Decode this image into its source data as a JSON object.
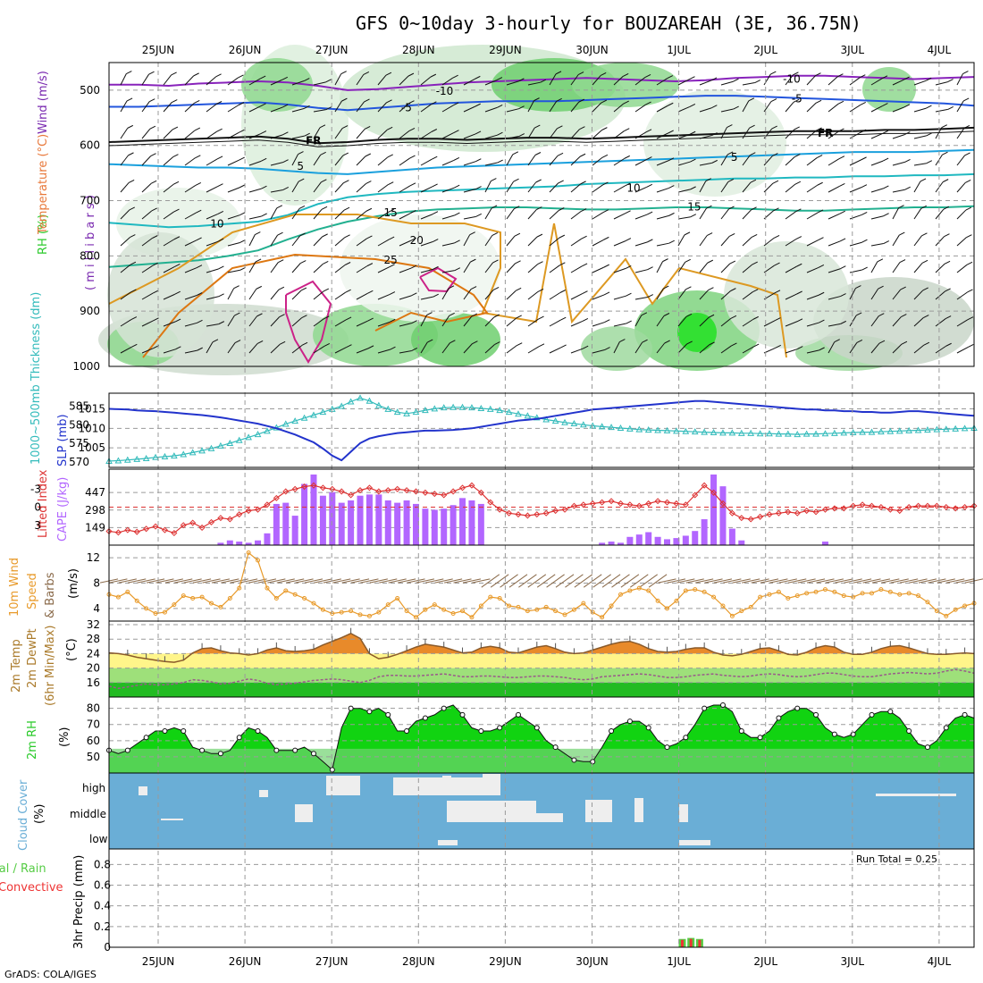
{
  "title": "GFS 0~10day 3-hourly for BOUZAREAH (3E, 36.75N)",
  "footer": "GrADS: COLA/IGES",
  "run_total": "Run Total = 0.25",
  "days": [
    "25JUN",
    "26JUN",
    "27JUN",
    "28JUN",
    "29JUN",
    "30JUN",
    "1JUL",
    "2JUL",
    "3JUL",
    "4JUL"
  ],
  "colors": {
    "rh_band": "#2aca2a",
    "temp_label": "#e8783a",
    "wind_label": "#7a2ab0",
    "slp": "#2233cc",
    "thickness": "#33bbbb",
    "li": "#dd3333",
    "cape": "#b266ff",
    "wind10": "#e89a2a",
    "barb10": "#8a6a4a",
    "cloud": "#6aaed6",
    "precip_total": "#55cc44",
    "precip_conv": "#ee3333",
    "rh_fill": "#11d311",
    "temp_fill": "#e88a2a",
    "dew": "#9a5a8a"
  },
  "labels": {
    "upper_rh": "RH (%)",
    "upper_temp": "Temperature (°C)",
    "upper_wind": "Wind (m/s)",
    "upper_press": "( m i l l i b a r s )",
    "thickness": "1000~500mb Thickness (dm)",
    "slp": "SLP (mb)",
    "li": "Lifted Index",
    "cape": "CAPE (J/kg)",
    "wind10_a": "10m Wind",
    "wind10_b": "Speed",
    "wind10_c": "& Barbs",
    "wind10_unit": "(m/s)",
    "temp_a": "2m Temp",
    "temp_b": "2m DewPt",
    "temp_c": "(6hr Min/Max)",
    "temp_unit": "(°C)",
    "rh2m": "2m RH",
    "rh2m_unit": "(%)",
    "cloud": "Cloud Cover",
    "cloud_unit": "(%)",
    "precip_a": "Total / Rain",
    "precip_b": "Convective",
    "precip_unit": "3hr Precip (mm)"
  },
  "chart_data": [
    {
      "type": "line",
      "name": "upper-air cross section",
      "ylabel": "millibars",
      "yticks": [
        500,
        600,
        700,
        800,
        900,
        1000
      ],
      "ylim": [
        450,
        1000
      ],
      "isotherms": [
        {
          "label": "-10",
          "color": "#8822bb",
          "values": [
            490,
            490,
            492,
            488,
            486,
            484,
            486,
            492,
            500,
            498,
            494,
            490,
            486,
            484,
            482,
            480,
            478,
            480,
            482,
            484,
            482,
            478,
            476,
            474,
            474,
            476,
            478,
            480,
            478,
            476
          ]
        },
        {
          "label": "-5",
          "color": "#2255dd",
          "values": [
            530,
            530,
            528,
            526,
            524,
            522,
            526,
            532,
            536,
            532,
            528,
            524,
            522,
            520,
            520,
            520,
            518,
            516,
            514,
            512,
            510,
            510,
            512,
            514,
            516,
            518,
            520,
            522,
            524,
            528
          ]
        },
        {
          "label": "FR",
          "color": "#111111",
          "values": [
            594,
            592,
            590,
            588,
            586,
            584,
            588,
            596,
            594,
            590,
            588,
            588,
            590,
            588,
            586,
            586,
            588,
            586,
            584,
            582,
            580,
            578,
            576,
            574,
            574,
            574,
            572,
            572,
            570,
            568
          ]
        },
        {
          "label": "5",
          "color": "#1aa0dd",
          "values": [
            634,
            636,
            638,
            640,
            640,
            642,
            646,
            650,
            652,
            648,
            644,
            640,
            638,
            636,
            634,
            632,
            630,
            628,
            626,
            624,
            622,
            620,
            618,
            616,
            614,
            612,
            612,
            612,
            610,
            608
          ]
        },
        {
          "label": "10",
          "color": "#1fb8c0",
          "values": [
            740,
            744,
            748,
            746,
            742,
            738,
            726,
            706,
            694,
            688,
            684,
            682,
            680,
            678,
            676,
            674,
            670,
            668,
            666,
            664,
            662,
            660,
            660,
            658,
            658,
            656,
            656,
            654,
            654,
            652
          ]
        },
        {
          "label": "15",
          "color": "#22b090",
          "values": [
            820,
            816,
            812,
            808,
            800,
            790,
            770,
            752,
            738,
            728,
            720,
            716,
            714,
            712,
            712,
            714,
            716,
            716,
            714,
            712,
            712,
            714,
            716,
            718,
            718,
            716,
            714,
            712,
            712,
            710
          ]
        }
      ],
      "isotherm_labels": [
        {
          "text": "-10",
          "color": "#8822bb",
          "day": 3.2,
          "p": 500
        },
        {
          "text": "-10",
          "color": "#8822bb",
          "day": 7.2,
          "p": 478
        },
        {
          "text": "-5",
          "color": "#2255dd",
          "day": 2.8,
          "p": 530
        },
        {
          "text": "-5",
          "color": "#2255dd",
          "day": 7.3,
          "p": 514
        },
        {
          "text": "FR",
          "color": "#111111",
          "day": 1.7,
          "p": 590
        },
        {
          "text": "FR",
          "color": "#111111",
          "day": 7.6,
          "p": 576
        },
        {
          "text": "5",
          "color": "#1aa0dd",
          "day": 1.6,
          "p": 636
        },
        {
          "text": "5",
          "color": "#1aa0dd",
          "day": 6.6,
          "p": 620
        },
        {
          "text": "10",
          "color": "#1fb8c0",
          "day": 0.6,
          "p": 740
        },
        {
          "text": "10",
          "color": "#1fb8c0",
          "day": 5.4,
          "p": 676
        },
        {
          "text": "15",
          "color": "#22b090",
          "day": 2.6,
          "p": 720
        },
        {
          "text": "15",
          "color": "#22b090",
          "day": 6.1,
          "p": 710
        },
        {
          "text": "20",
          "color": "#dd9922",
          "day": 2.9,
          "p": 770
        },
        {
          "text": "25",
          "color": "#dd7711",
          "day": 2.6,
          "p": 806
        }
      ]
    },
    {
      "type": "line",
      "name": "1000-500mb thickness and SLP",
      "x_days_step": 0.125,
      "thickness_dm": [
        570.2,
        570.3,
        570.5,
        570.7,
        570.9,
        571.2,
        571.4,
        571.6,
        572.0,
        572.5,
        573.0,
        573.6,
        574.3,
        575.0,
        575.8,
        576.6,
        577.4,
        578.3,
        579.2,
        580.2,
        581.0,
        581.8,
        582.6,
        583.4,
        584.2,
        585.0,
        586.2,
        587.2,
        586.4,
        585.2,
        584.2,
        583.4,
        583.0,
        583.4,
        583.9,
        584.3,
        584.6,
        584.7,
        584.7,
        584.6,
        584.4,
        584.2,
        583.9,
        583.4,
        582.9,
        582.4,
        581.9,
        581.4,
        581.0,
        580.6,
        580.3,
        580.0,
        579.7,
        579.5,
        579.3,
        579.1,
        578.9,
        578.7,
        578.6,
        578.5,
        578.4,
        578.3,
        578.2,
        578.1,
        578.0,
        577.9,
        577.8,
        577.8,
        577.7,
        577.7,
        577.6,
        577.6,
        577.5,
        577.5,
        577.4,
        577.5,
        577.5,
        577.6,
        577.7,
        577.8,
        577.9,
        578.0,
        578.0,
        578.1,
        578.2,
        578.3,
        578.4,
        578.5,
        578.6,
        578.7,
        578.8,
        578.9,
        579.0,
        579.1
      ],
      "slp_mb": [
        1015.0,
        1014.9,
        1014.8,
        1014.6,
        1014.5,
        1014.4,
        1014.2,
        1014.0,
        1013.8,
        1013.6,
        1013.4,
        1013.1,
        1012.8,
        1012.4,
        1012.0,
        1011.6,
        1011.2,
        1010.6,
        1010.0,
        1009.2,
        1008.4,
        1007.4,
        1006.4,
        1004.8,
        1003.0,
        1001.8,
        1004.0,
        1006.2,
        1007.4,
        1008.0,
        1008.4,
        1008.8,
        1009.0,
        1009.2,
        1009.4,
        1009.4,
        1009.5,
        1009.6,
        1009.8,
        1010.0,
        1010.4,
        1010.8,
        1011.2,
        1011.6,
        1012.0,
        1012.2,
        1012.4,
        1012.8,
        1013.2,
        1013.6,
        1014.0,
        1014.4,
        1014.8,
        1015.0,
        1015.2,
        1015.4,
        1015.6,
        1015.8,
        1016.0,
        1016.2,
        1016.4,
        1016.6,
        1016.8,
        1017.0,
        1017.0,
        1016.8,
        1016.6,
        1016.4,
        1016.2,
        1016.0,
        1015.8,
        1015.6,
        1015.4,
        1015.2,
        1015.0,
        1014.8,
        1014.8,
        1014.6,
        1014.6,
        1014.4,
        1014.4,
        1014.2,
        1014.2,
        1014.0,
        1014.0,
        1014.2,
        1014.4,
        1014.4,
        1014.2,
        1014.0,
        1013.8,
        1013.6,
        1013.4,
        1013.2
      ],
      "thickness_ticks": [
        570,
        575,
        580,
        585
      ],
      "slp_ticks": [
        1005,
        1010,
        1015
      ]
    },
    {
      "type": "bar",
      "name": "CAPE and Lifted Index",
      "cape_ticks": [
        149,
        298,
        447
      ],
      "li_ticks": [
        -3,
        0,
        3
      ],
      "cape": [
        0,
        0,
        0,
        0,
        0,
        0,
        0,
        0,
        0,
        0,
        0,
        0,
        20,
        40,
        30,
        20,
        40,
        100,
        350,
        360,
        250,
        520,
        600,
        420,
        450,
        360,
        380,
        420,
        430,
        430,
        380,
        360,
        380,
        350,
        310,
        300,
        310,
        340,
        400,
        380,
        350,
        0,
        0,
        0,
        0,
        0,
        0,
        0,
        0,
        0,
        0,
        0,
        0,
        20,
        30,
        20,
        70,
        90,
        110,
        70,
        50,
        60,
        80,
        120,
        220,
        600,
        500,
        140,
        40,
        0,
        0,
        0,
        0,
        0,
        0,
        0,
        0,
        30,
        0,
        0,
        0,
        0,
        0,
        0,
        0,
        0,
        0,
        0,
        0,
        0,
        0,
        0,
        0
      ],
      "li": [
        4.0,
        4.2,
        3.8,
        4.1,
        3.6,
        3.2,
        3.8,
        4.3,
        3.0,
        2.6,
        3.4,
        2.5,
        1.8,
        2.0,
        1.2,
        0.6,
        0.4,
        -0.4,
        -1.5,
        -2.6,
        -3.0,
        -3.4,
        -3.6,
        -3.2,
        -3.0,
        -2.6,
        -2.0,
        -2.8,
        -3.2,
        -2.6,
        -2.8,
        -3.0,
        -2.8,
        -2.6,
        -2.4,
        -2.2,
        -2.0,
        -2.6,
        -3.2,
        -3.6,
        -2.4,
        -0.8,
        0.4,
        1.0,
        1.2,
        1.4,
        1.2,
        1.0,
        0.6,
        0.4,
        -0.2,
        -0.4,
        -0.6,
        -0.8,
        -1.0,
        -0.6,
        -0.4,
        -0.2,
        -0.6,
        -1.0,
        -0.8,
        -0.6,
        -0.4,
        -2.0,
        -3.6,
        -2.4,
        -0.6,
        1.0,
        1.8,
        2.0,
        1.6,
        1.2,
        1.0,
        0.8,
        1.0,
        0.6,
        0.8,
        0.4,
        0.2,
        0.2,
        -0.2,
        -0.4,
        -0.2,
        0.0,
        0.4,
        0.6,
        0.0,
        -0.2,
        -0.2,
        -0.2,
        0.0,
        0.2,
        0.0,
        -0.2
      ]
    },
    {
      "type": "line",
      "name": "10m wind speed",
      "ylabel": "(m/s)",
      "yticks": [
        4,
        8,
        12
      ],
      "ylim": [
        2,
        14
      ],
      "speed": [
        6.2,
        5.8,
        6.6,
        5.2,
        4.0,
        3.2,
        3.4,
        4.6,
        6.0,
        5.6,
        5.8,
        4.8,
        4.2,
        5.6,
        7.2,
        12.8,
        11.6,
        7.2,
        5.6,
        6.8,
        6.2,
        5.6,
        4.8,
        3.8,
        3.2,
        3.4,
        3.6,
        3.0,
        2.8,
        3.4,
        4.6,
        5.6,
        3.6,
        2.6,
        3.8,
        4.6,
        3.8,
        3.2,
        3.6,
        2.6,
        4.4,
        5.8,
        5.6,
        4.4,
        4.2,
        3.6,
        3.8,
        4.2,
        3.6,
        3.0,
        3.8,
        4.8,
        3.4,
        2.6,
        4.4,
        6.2,
        6.8,
        7.2,
        6.8,
        5.2,
        4.0,
        5.2,
        6.8,
        7.0,
        6.6,
        5.8,
        4.4,
        2.8,
        3.6,
        4.2,
        5.8,
        6.2,
        6.6,
        5.6,
        6.0,
        6.4,
        6.6,
        7.0,
        6.6,
        6.0,
        5.8,
        6.4,
        6.4,
        7.0,
        6.6,
        6.2,
        6.4,
        6.0,
        5.0,
        3.6,
        2.8,
        3.8,
        4.4,
        4.8
      ]
    },
    {
      "type": "area",
      "name": "2m temperature and dew point",
      "ylabel": "(°C)",
      "yticks": [
        16,
        20,
        24,
        28,
        32
      ],
      "ylim": [
        12,
        33
      ],
      "temp": [
        24.2,
        24.0,
        23.6,
        23.0,
        22.6,
        22.2,
        21.8,
        21.6,
        22.2,
        24.2,
        25.4,
        25.6,
        24.8,
        24.2,
        24.0,
        23.6,
        24.0,
        25.0,
        25.6,
        24.8,
        24.6,
        24.8,
        25.2,
        26.4,
        27.4,
        28.4,
        29.6,
        28.2,
        24.0,
        22.6,
        23.0,
        23.8,
        24.8,
        25.8,
        26.6,
        26.2,
        25.8,
        25.0,
        24.2,
        24.4,
        25.6,
        26.0,
        25.6,
        24.4,
        24.2,
        25.0,
        25.8,
        26.2,
        25.4,
        24.4,
        24.0,
        24.2,
        25.0,
        25.8,
        26.6,
        27.2,
        27.4,
        26.6,
        25.4,
        24.6,
        24.4,
        24.6,
        25.2,
        25.6,
        25.6,
        24.4,
        23.6,
        23.4,
        23.8,
        24.6,
        25.4,
        25.6,
        24.8,
        23.8,
        23.6,
        24.4,
        25.6,
        26.2,
        25.8,
        24.4,
        23.8,
        23.8,
        24.4,
        25.4,
        26.0,
        26.2,
        25.6,
        24.8,
        24.0,
        23.8,
        23.8,
        24.0,
        24.2,
        24.0
      ],
      "dewpoint": [
        15.0,
        14.4,
        14.8,
        15.2,
        15.6,
        15.4,
        15.4,
        15.6,
        16.0,
        16.8,
        16.6,
        16.2,
        15.6,
        15.8,
        16.4,
        17.0,
        16.6,
        15.8,
        15.4,
        15.6,
        15.8,
        16.2,
        16.6,
        16.8,
        17.0,
        16.8,
        16.4,
        16.0,
        16.6,
        17.6,
        18.0,
        18.0,
        17.8,
        17.8,
        18.0,
        18.2,
        18.4,
        18.0,
        17.6,
        17.6,
        17.8,
        17.8,
        17.6,
        17.4,
        17.4,
        17.6,
        17.8,
        17.8,
        17.6,
        17.4,
        17.0,
        16.8,
        17.0,
        17.6,
        17.8,
        18.0,
        18.2,
        18.4,
        18.2,
        17.8,
        17.4,
        17.4,
        17.6,
        18.0,
        18.2,
        18.4,
        18.0,
        17.8,
        17.6,
        17.8,
        18.2,
        18.4,
        18.2,
        17.8,
        17.6,
        17.8,
        18.2,
        18.6,
        18.6,
        18.2,
        17.8,
        17.6,
        17.6,
        18.0,
        18.4,
        18.6,
        18.8,
        18.6,
        18.4,
        18.6,
        19.2,
        19.6,
        19.2,
        18.6
      ]
    },
    {
      "type": "area",
      "name": "2m relative humidity",
      "ylabel": "(%)",
      "yticks": [
        50,
        60,
        70,
        80
      ],
      "ylim": [
        40,
        87
      ],
      "rh": [
        54,
        52,
        54,
        58,
        62,
        66,
        66,
        68,
        66,
        56,
        54,
        52,
        52,
        54,
        62,
        68,
        66,
        62,
        54,
        54,
        54,
        56,
        52,
        47,
        42,
        68,
        80,
        80,
        78,
        80,
        76,
        66,
        66,
        72,
        74,
        76,
        80,
        82,
        76,
        68,
        66,
        66,
        68,
        72,
        76,
        72,
        68,
        60,
        56,
        52,
        48,
        47,
        47,
        56,
        66,
        70,
        72,
        72,
        68,
        60,
        56,
        58,
        62,
        70,
        80,
        82,
        82,
        78,
        66,
        62,
        62,
        66,
        74,
        78,
        80,
        80,
        76,
        68,
        64,
        62,
        64,
        70,
        76,
        78,
        78,
        74,
        66,
        58,
        56,
        60,
        68,
        74,
        76,
        74
      ]
    },
    {
      "type": "heatmap",
      "name": "cloud cover",
      "rows": [
        "high",
        "middle",
        "low"
      ]
    },
    {
      "type": "bar",
      "name": "3hr precipitation",
      "ylabel": "3hr Precip (mm)",
      "yticks": [
        0,
        0.2,
        0.4,
        0.6,
        0.8
      ],
      "ylim": [
        0,
        0.95
      ],
      "events": [
        {
          "day": 6.04,
          "total": 0.08
        },
        {
          "day": 6.14,
          "total": 0.09
        },
        {
          "day": 6.24,
          "total": 0.08
        }
      ]
    }
  ]
}
